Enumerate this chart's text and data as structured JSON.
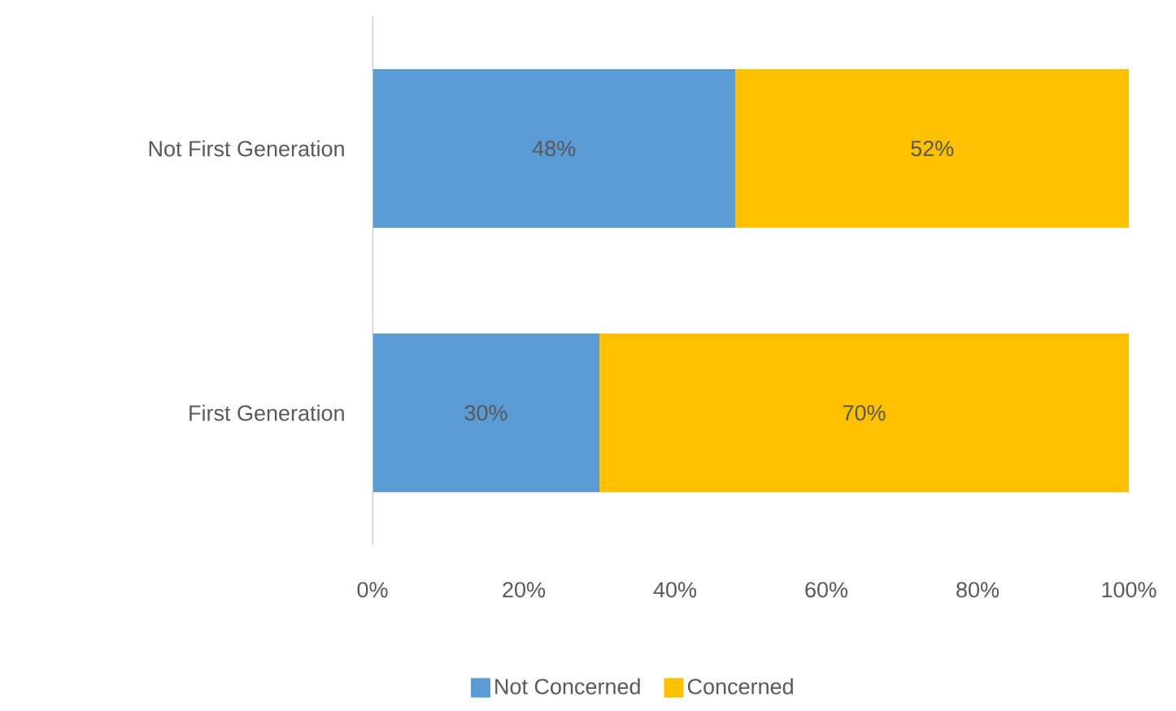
{
  "chart_data": {
    "type": "bar",
    "orientation": "horizontal",
    "stacked": true,
    "categories": [
      "Not First Generation",
      "First Generation"
    ],
    "series": [
      {
        "name": "Not Concerned",
        "color": "#5b9bd5",
        "values": [
          48,
          30
        ],
        "value_labels": [
          "48%",
          "30%"
        ]
      },
      {
        "name": "Concerned",
        "color": "#ffc000",
        "values": [
          52,
          70
        ],
        "value_labels": [
          "52%",
          "70%"
        ]
      }
    ],
    "xlim": [
      0,
      100
    ],
    "xticks": [
      {
        "value": 0,
        "label": "0%"
      },
      {
        "value": 20,
        "label": "20%"
      },
      {
        "value": 40,
        "label": "40%"
      },
      {
        "value": 60,
        "label": "60%"
      },
      {
        "value": 80,
        "label": "80%"
      },
      {
        "value": 100,
        "label": "100%"
      }
    ],
    "legend": "bottom"
  }
}
